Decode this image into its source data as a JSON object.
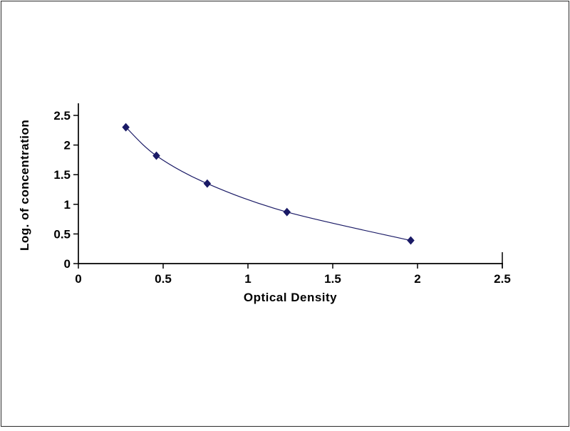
{
  "page": {
    "background": "#ffffff",
    "border_color": "#2b2b2b"
  },
  "chart_data": {
    "type": "scatter",
    "title": "",
    "xlabel": "Optical Density",
    "ylabel": "Log. of concentration",
    "x": [
      0.28,
      0.46,
      0.76,
      1.23,
      1.96
    ],
    "y": [
      2.3,
      1.82,
      1.35,
      0.87,
      0.39
    ],
    "xlim": [
      0,
      2.5
    ],
    "ylim": [
      0,
      2.5
    ],
    "xticks": [
      0,
      0.5,
      1,
      1.5,
      2,
      2.5
    ],
    "yticks": [
      0,
      0.5,
      1,
      1.5,
      2,
      2.5
    ],
    "grid": false,
    "legend": "none",
    "curve_style": "smooth",
    "line_color": "#1a1a66",
    "marker_color": "#1a1a66",
    "marker_shape": "diamond",
    "axis_color": "#000000"
  }
}
